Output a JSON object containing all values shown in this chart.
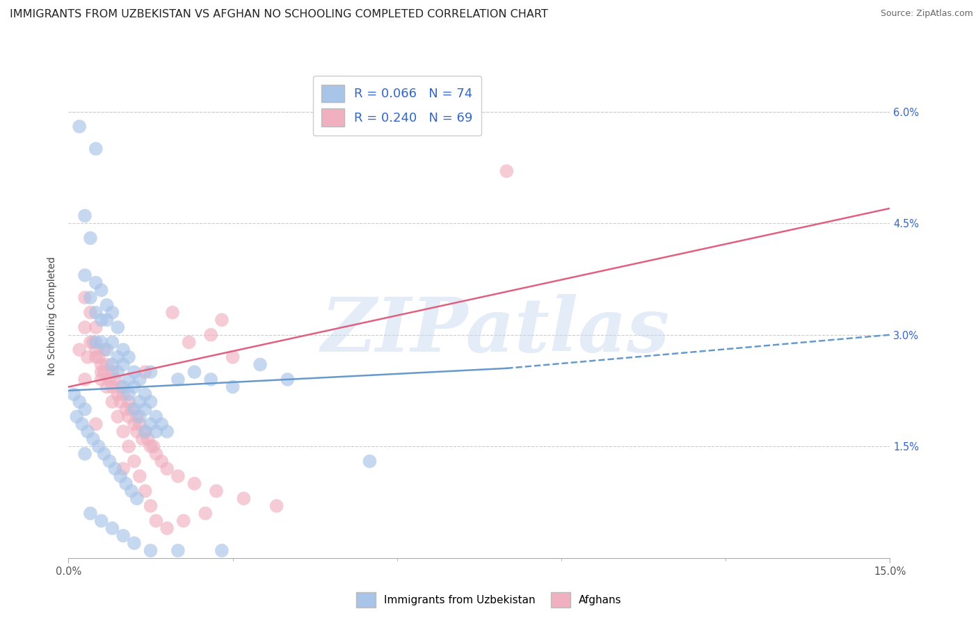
{
  "title": "IMMIGRANTS FROM UZBEKISTAN VS AFGHAN NO SCHOOLING COMPLETED CORRELATION CHART",
  "source": "Source: ZipAtlas.com",
  "xlim": [
    0.0,
    15.0
  ],
  "ylim": [
    0.0,
    6.5
  ],
  "series1_label": "Immigrants from Uzbekistan",
  "series2_label": "Afghans",
  "series1_color": "#a8c4e8",
  "series2_color": "#f0b0c0",
  "series1_line_color": "#6699cc",
  "series2_line_color": "#e06080",
  "series1_R": 0.066,
  "series1_N": 74,
  "series2_R": 0.24,
  "series2_N": 69,
  "legend_text_color": "#3366cc",
  "ytick_color": "#3366cc",
  "background_color": "#ffffff",
  "grid_color": "#cccccc",
  "watermark_text": "ZIPatlas",
  "title_fontsize": 11.5,
  "axis_label_fontsize": 10,
  "tick_fontsize": 10.5,
  "yticks": [
    1.5,
    3.0,
    4.5,
    6.0
  ],
  "xticks": [
    0.0,
    15.0
  ],
  "uz_x": [
    0.2,
    0.5,
    0.3,
    0.4,
    0.3,
    0.5,
    0.6,
    0.4,
    0.7,
    0.5,
    0.8,
    0.6,
    0.7,
    0.9,
    0.5,
    0.6,
    0.8,
    1.0,
    0.7,
    0.9,
    1.1,
    0.8,
    1.0,
    1.2,
    0.9,
    1.1,
    1.3,
    1.0,
    1.2,
    1.4,
    1.1,
    1.3,
    1.5,
    1.2,
    1.4,
    1.6,
    1.3,
    1.5,
    1.7,
    1.4,
    1.6,
    1.8,
    1.5,
    2.0,
    2.3,
    2.6,
    3.0,
    3.5,
    4.0,
    5.5,
    0.1,
    0.2,
    0.3,
    0.15,
    0.25,
    0.35,
    0.45,
    0.55,
    0.65,
    0.75,
    0.85,
    0.95,
    1.05,
    1.15,
    1.25,
    0.4,
    0.6,
    0.8,
    1.0,
    1.2,
    1.5,
    2.0,
    2.8,
    0.3
  ],
  "uz_y": [
    5.8,
    5.5,
    4.6,
    4.3,
    3.8,
    3.7,
    3.6,
    3.5,
    3.4,
    3.3,
    3.3,
    3.2,
    3.2,
    3.1,
    2.9,
    2.9,
    2.9,
    2.8,
    2.8,
    2.7,
    2.7,
    2.6,
    2.6,
    2.5,
    2.5,
    2.4,
    2.4,
    2.3,
    2.3,
    2.2,
    2.2,
    2.1,
    2.1,
    2.0,
    2.0,
    1.9,
    1.9,
    1.8,
    1.8,
    1.7,
    1.7,
    1.7,
    2.5,
    2.4,
    2.5,
    2.4,
    2.3,
    2.6,
    2.4,
    1.3,
    2.2,
    2.1,
    2.0,
    1.9,
    1.8,
    1.7,
    1.6,
    1.5,
    1.4,
    1.3,
    1.2,
    1.1,
    1.0,
    0.9,
    0.8,
    0.6,
    0.5,
    0.4,
    0.3,
    0.2,
    0.1,
    0.1,
    0.1,
    1.4
  ],
  "af_x": [
    0.2,
    0.3,
    0.4,
    0.5,
    0.35,
    0.45,
    0.55,
    0.65,
    0.5,
    0.6,
    0.7,
    0.8,
    0.65,
    0.75,
    0.85,
    0.95,
    0.8,
    0.9,
    1.0,
    1.1,
    0.95,
    1.05,
    1.15,
    1.25,
    1.1,
    1.2,
    1.3,
    1.4,
    1.25,
    1.35,
    1.45,
    1.55,
    1.5,
    1.6,
    1.7,
    1.8,
    2.0,
    2.3,
    2.7,
    3.2,
    3.8,
    0.3,
    0.4,
    0.5,
    0.6,
    0.7,
    0.8,
    0.9,
    1.0,
    1.1,
    1.2,
    1.3,
    1.4,
    1.5,
    1.6,
    1.8,
    2.1,
    2.5,
    3.0,
    0.6,
    8.0,
    1.9,
    2.8,
    2.6,
    2.2,
    1.4,
    0.5,
    1.0,
    0.3
  ],
  "af_y": [
    2.8,
    3.5,
    3.3,
    3.1,
    2.7,
    2.9,
    2.7,
    2.8,
    2.8,
    2.6,
    2.6,
    2.5,
    2.5,
    2.4,
    2.4,
    2.3,
    2.3,
    2.2,
    2.2,
    2.1,
    2.1,
    2.0,
    2.0,
    1.9,
    1.9,
    1.8,
    1.8,
    1.7,
    1.7,
    1.6,
    1.6,
    1.5,
    1.5,
    1.4,
    1.3,
    1.2,
    1.1,
    1.0,
    0.9,
    0.8,
    0.7,
    3.1,
    2.9,
    2.7,
    2.5,
    2.3,
    2.1,
    1.9,
    1.7,
    1.5,
    1.3,
    1.1,
    0.9,
    0.7,
    0.5,
    0.4,
    0.5,
    0.6,
    2.7,
    2.4,
    5.2,
    3.3,
    3.2,
    3.0,
    2.9,
    2.5,
    1.8,
    1.2,
    2.4
  ],
  "uz_trendline_x0": 0.0,
  "uz_trendline_y0": 2.25,
  "uz_trendline_x1": 8.0,
  "uz_trendline_y1": 2.55,
  "uz_trendline_x1_dash": 15.0,
  "uz_trendline_y1_dash": 3.0,
  "af_trendline_x0": 0.0,
  "af_trendline_y0": 2.3,
  "af_trendline_x1": 15.0,
  "af_trendline_y1": 4.7
}
